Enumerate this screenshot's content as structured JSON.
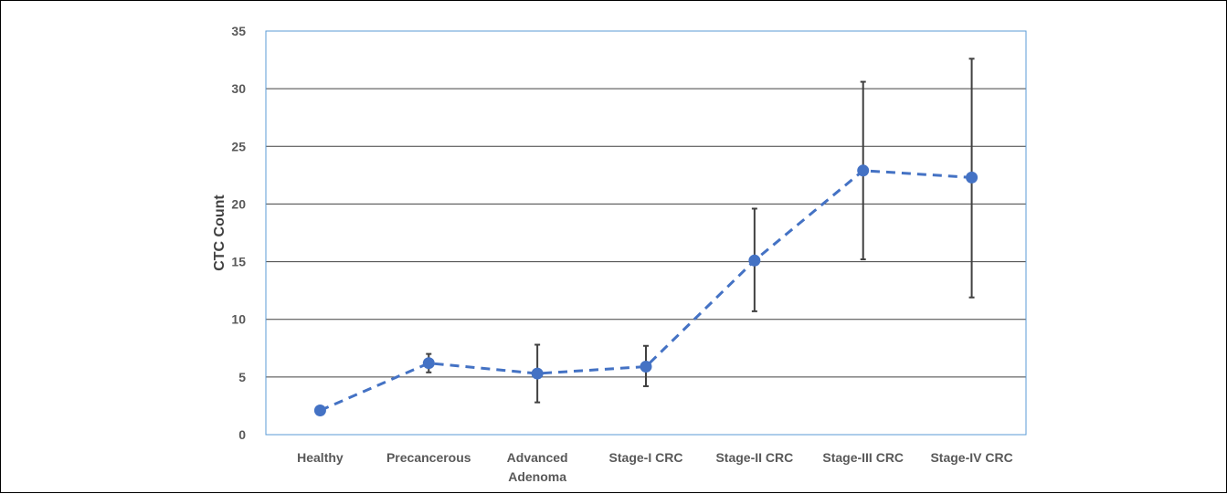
{
  "chart_data": {
    "type": "line",
    "title": "",
    "xlabel": "",
    "ylabel": "CTC Count",
    "ylim": [
      0,
      35
    ],
    "yticks": [
      0,
      5,
      10,
      15,
      20,
      25,
      30,
      35
    ],
    "grid": true,
    "categories": [
      [
        "Healthy"
      ],
      [
        "Precancerous"
      ],
      [
        "Advanced",
        "Adenoma"
      ],
      [
        "Stage-I CRC"
      ],
      [
        "Stage-II CRC"
      ],
      [
        "Stage-III CRC"
      ],
      [
        "Stage-IV CRC"
      ]
    ],
    "series": [
      {
        "values": [
          2.1,
          6.2,
          5.3,
          5.9,
          15.1,
          22.9,
          22.3
        ],
        "error_low": [
          2.1,
          5.4,
          2.8,
          4.2,
          10.7,
          15.2,
          11.9
        ],
        "error_high": [
          2.1,
          7.0,
          7.8,
          7.7,
          19.6,
          30.6,
          32.6
        ],
        "line_style": "dashed",
        "color": "#4472C4"
      }
    ],
    "colors": {
      "grid": "#404040",
      "plot_border": "#5B9BD5",
      "error_bar": "#404040",
      "series": "#4472C4"
    }
  }
}
